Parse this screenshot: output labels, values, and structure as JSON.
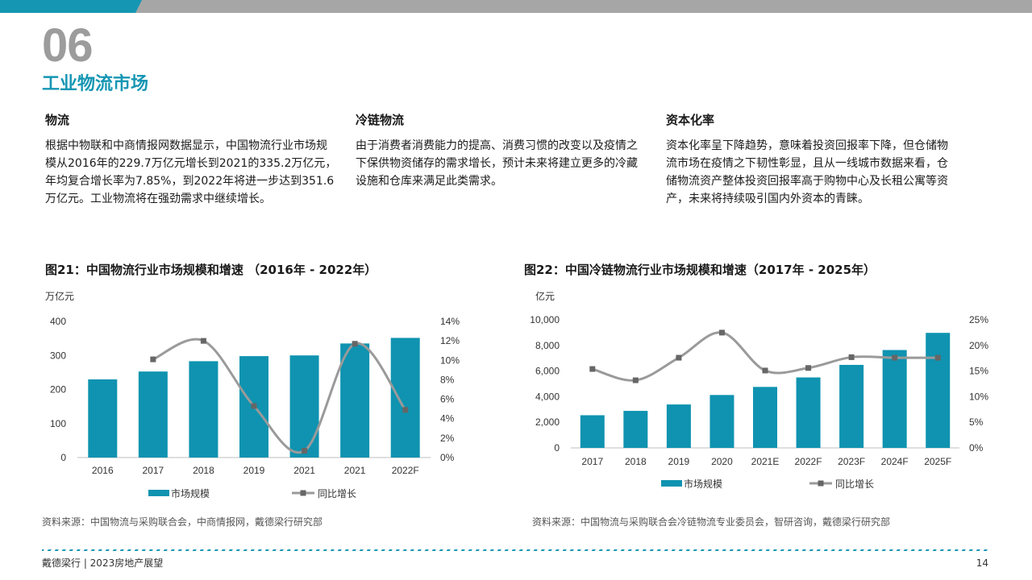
{
  "section": {
    "number": "06",
    "title": "工业物流市场"
  },
  "columns": [
    {
      "heading": "物流",
      "body": "根据中物联和中商情报网数据显示，中国物流行业市场规模从2016年的229.7万亿元增长到2021的335.2万亿元，年均复合增长率为7.85%，到2022年将进一步达到351.6万亿元。工业物流将在强劲需求中继续增长。"
    },
    {
      "heading": "冷链物流",
      "body": "由于消费者消费能力的提高、消费习惯的改变以及疫情之下保供物资储存的需求增长，预计未来将建立更多的冷藏设施和仓库来满足此类需求。"
    },
    {
      "heading": "资本化率",
      "body": "资本化率呈下降趋势，意味着投资回报率下降，但仓储物流市场在疫情之下韧性彰显，且从一线城市数据来看，仓储物流资产整体投资回报率高于购物中心及长租公寓等资产，未来将持续吸引国内外资本的青睐。"
    }
  ],
  "chart_data": [
    {
      "type": "bar",
      "title": "图21：中国物流行业市场规模和增速 （2016年 - 2022年）",
      "ylabel": "万亿元",
      "categories": [
        "2016",
        "2017",
        "2018",
        "2019",
        "2021",
        "2021",
        "2022F"
      ],
      "ylim": [
        0,
        400
      ],
      "yticks": [
        "0",
        "100",
        "200",
        "300",
        "400"
      ],
      "y2lim": [
        0,
        14
      ],
      "y2ticks": [
        "0%",
        "2%",
        "4%",
        "6%",
        "8%",
        "10%",
        "12%",
        "14%"
      ],
      "series": [
        {
          "name": "市场规模",
          "type": "bar",
          "axis": "left",
          "values": [
            229.7,
            252.8,
            283.1,
            298.0,
            300.1,
            335.2,
            351.6
          ]
        },
        {
          "name": "同比增长",
          "type": "line",
          "axis": "right",
          "values": [
            null,
            10.1,
            12.0,
            5.3,
            0.7,
            11.7,
            4.9
          ]
        }
      ],
      "legend": "bottom",
      "source": "资料来源：中国物流与采购联合会，中商情报网，戴德梁行研究部",
      "colors": {
        "bar": "#0f93b0",
        "line": "#9a9a9a"
      }
    },
    {
      "type": "bar",
      "title": "图22：中国冷链物流行业市场规模和增速（2017年 - 2025年）",
      "ylabel": "亿元",
      "categories": [
        "2017",
        "2018",
        "2019",
        "2020",
        "2021E",
        "2022F",
        "2023F",
        "2024F",
        "2025F"
      ],
      "ylim": [
        0,
        10000
      ],
      "yticks": [
        "0",
        "2,000",
        "4,000",
        "6,000",
        "8,000",
        "10,000"
      ],
      "y2lim": [
        0,
        25
      ],
      "y2ticks": [
        "0%",
        "5%",
        "10%",
        "15%",
        "20%",
        "25%"
      ],
      "series": [
        {
          "name": "市场规模",
          "type": "bar",
          "axis": "left",
          "values": [
            2550,
            2890,
            3390,
            4130,
            4760,
            5500,
            6480,
            7640,
            8980
          ]
        },
        {
          "name": "同比增长",
          "type": "line",
          "axis": "right",
          "values": [
            15.4,
            13.2,
            17.6,
            22.5,
            15.1,
            15.6,
            17.7,
            17.6,
            17.6
          ]
        }
      ],
      "legend": "bottom",
      "source": "资料来源：中国物流与采购联合会冷链物流专业委员会，智研咨询，戴德梁行研究部",
      "colors": {
        "bar": "#0f93b0",
        "line": "#9a9a9a"
      }
    }
  ],
  "footer": {
    "left": "戴德梁行 | 2023房地产展望",
    "page": "14"
  },
  "colors": {
    "accent": "#1596b3",
    "bar": "#0f93b0",
    "line": "#9a9a9a",
    "topbar_gray": "#a6a6a6",
    "topbar_teal": "#1596b3"
  }
}
